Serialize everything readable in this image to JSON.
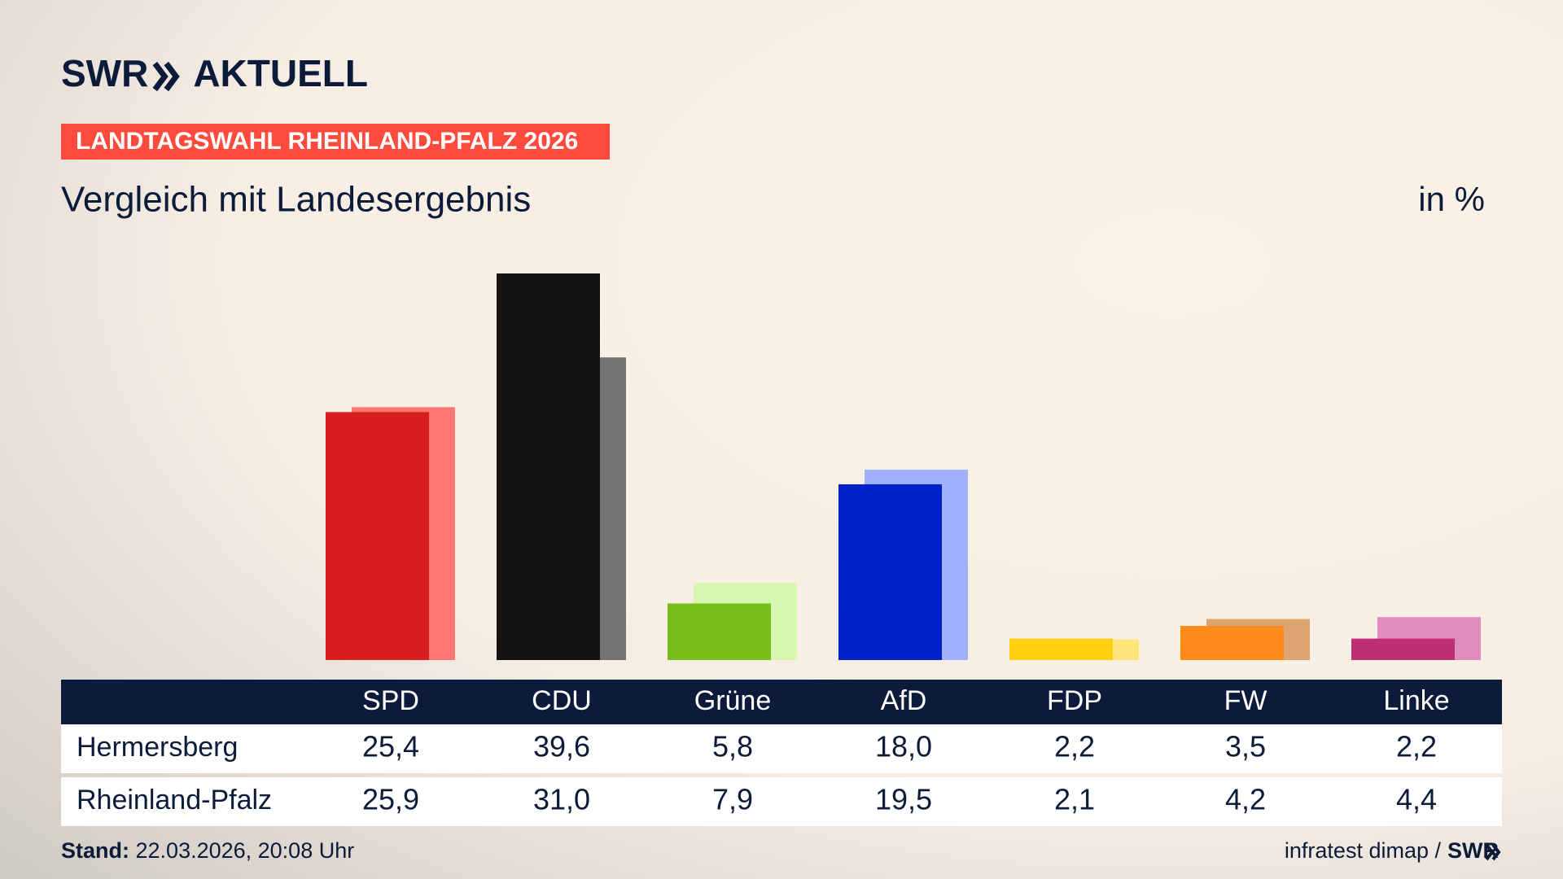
{
  "header": {
    "brand": "SWR",
    "product": "AKTUELL",
    "tag": "LANDTAGSWAHL RHEINLAND-PFALZ 2026"
  },
  "chart_data": {
    "type": "bar",
    "title": "Vergleich mit Landesergebnis",
    "unit": "in %",
    "categories": [
      "SPD",
      "CDU",
      "Grüne",
      "AfD",
      "FDP",
      "FW",
      "Linke"
    ],
    "series": [
      {
        "name": "Hermersberg",
        "colors": [
          "#d81e1e",
          "#141414",
          "#78be1a",
          "#0020c8",
          "#ffd010",
          "#ff8c1a",
          "#be2f73"
        ],
        "values": [
          25.4,
          39.6,
          5.8,
          18.0,
          2.2,
          3.5,
          2.2
        ],
        "value_labels": [
          "25,4",
          "39,6",
          "5,8",
          "18,0",
          "2,2",
          "3,5",
          "2,2"
        ]
      },
      {
        "name": "Rheinland-Pfalz",
        "colors": [
          "#ff7570",
          "#737373",
          "#d6f7b0",
          "#9fb0ff",
          "#ffe57a",
          "#dda46f",
          "#e08dbd"
        ],
        "values": [
          25.9,
          31.0,
          7.9,
          19.5,
          2.1,
          4.2,
          4.4
        ],
        "value_labels": [
          "25,9",
          "31,0",
          "7,9",
          "19,5",
          "2,1",
          "4,2",
          "4,4"
        ]
      }
    ]
  },
  "footer": {
    "stand_label": "Stand:",
    "stand": "22.03.2026, 20:08 Uhr",
    "source": "infratest dimap /",
    "source_brand": "SWR"
  }
}
